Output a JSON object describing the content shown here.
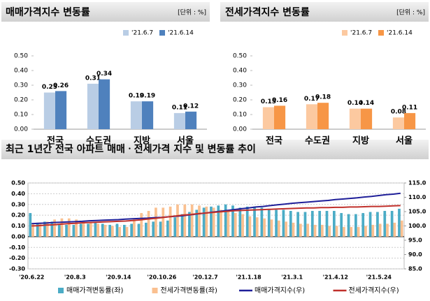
{
  "chart_data": [
    {
      "type": "bar",
      "title": "매매가격지수 변동률",
      "unit": "[단위 : %]",
      "categories": [
        "전국",
        "수도권",
        "지방",
        "서울"
      ],
      "series": [
        {
          "name": "'21.6.7",
          "color": "#b9cde5",
          "values": [
            0.25,
            0.31,
            0.19,
            0.11
          ]
        },
        {
          "name": "'21.6.14",
          "color": "#4f81bd",
          "values": [
            0.26,
            0.34,
            0.19,
            0.12
          ]
        }
      ],
      "ylim": [
        0,
        0.5
      ],
      "yticks": [
        {
          "value": 0,
          "label": "0.00"
        },
        {
          "value": 0.1,
          "label": "0.10"
        },
        {
          "value": 0.2,
          "label": "0.20"
        },
        {
          "value": 0.3,
          "label": "0.30"
        },
        {
          "value": 0.4,
          "label": "0.40"
        },
        {
          "value": 0.5,
          "label": "0.50"
        }
      ],
      "grid": false,
      "legend": "top-right"
    },
    {
      "type": "bar",
      "title": "전세가격지수 변동률",
      "unit": "[단위 : %]",
      "categories": [
        "전국",
        "수도권",
        "지방",
        "서울"
      ],
      "series": [
        {
          "name": "'21.6.7",
          "color": "#fcc9a0",
          "values": [
            0.15,
            0.17,
            0.14,
            0.08
          ]
        },
        {
          "name": "'21.6.14",
          "color": "#f79646",
          "values": [
            0.16,
            0.18,
            0.14,
            0.11
          ]
        }
      ],
      "ylim": [
        0,
        0.5
      ],
      "yticks": [
        {
          "value": 0,
          "label": "0.00"
        },
        {
          "value": 0.1,
          "label": "0.10"
        },
        {
          "value": 0.2,
          "label": "0.20"
        },
        {
          "value": 0.3,
          "label": "0.30"
        },
        {
          "value": 0.4,
          "label": "0.40"
        },
        {
          "value": 0.5,
          "label": "0.50"
        }
      ],
      "grid": false,
      "legend": "top-right"
    },
    {
      "type": "combo",
      "title": "최근 1년간 전국 아파트 매매ㆍ전세가격 지수 및 변동률 추이",
      "categories": [
        "'20.6.22",
        null,
        null,
        null,
        null,
        null,
        "'20.8.3",
        null,
        null,
        null,
        null,
        null,
        "'20.9.14",
        null,
        null,
        null,
        null,
        null,
        "'20.10.26",
        null,
        null,
        null,
        null,
        null,
        "'20.12.7",
        null,
        null,
        null,
        null,
        null,
        "'21.1.18",
        null,
        null,
        null,
        null,
        null,
        "'21.3.1",
        null,
        null,
        null,
        null,
        null,
        "'21.4.12",
        null,
        null,
        null,
        null,
        null,
        "'21.5.24",
        null,
        null,
        null
      ],
      "series": [
        {
          "name": "매매가격변동률(좌)",
          "color": "#4bacc6",
          "values": [
            0.22,
            0.13,
            0.14,
            0.14,
            0.12,
            0.11,
            0.11,
            0.12,
            0.12,
            0.13,
            0.12,
            0.11,
            0.12,
            0.11,
            0.12,
            0.12,
            0.13,
            0.14,
            0.14,
            0.15,
            0.18,
            0.21,
            0.23,
            0.25,
            0.27,
            0.28,
            0.29,
            0.3,
            0.29,
            0.27,
            0.28,
            0.28,
            0.27,
            0.26,
            0.25,
            0.25,
            0.24,
            0.23,
            0.23,
            0.24,
            0.24,
            0.24,
            0.24,
            0.22,
            0.21,
            0.21,
            0.22,
            0.23,
            0.23,
            0.24,
            0.24,
            0.26
          ]
        },
        {
          "name": "전세가격변동률(좌)",
          "color": "#fac090",
          "values": [
            0.12,
            0.13,
            0.14,
            0.16,
            0.17,
            0.17,
            0.16,
            0.14,
            0.13,
            0.12,
            0.11,
            0.1,
            0.09,
            0.09,
            0.16,
            0.22,
            0.24,
            0.27,
            0.27,
            0.28,
            0.3,
            0.3,
            0.3,
            0.29,
            0.28,
            0.27,
            0.25,
            0.23,
            0.22,
            0.21,
            0.19,
            0.18,
            0.17,
            0.16,
            0.15,
            0.14,
            0.13,
            0.12,
            0.12,
            0.11,
            0.11,
            0.1,
            0.1,
            0.09,
            0.09,
            0.09,
            0.1,
            0.11,
            0.12,
            0.12,
            0.13,
            0.15
          ]
        },
        {
          "name": "매매가격지수(우)",
          "color": "#1f1f99",
          "axis": "y2",
          "values": [
            100.8,
            100.9,
            101,
            101.2,
            101.3,
            101.4,
            101.5,
            101.6,
            101.8,
            101.9,
            102,
            102.1,
            102.2,
            102.4,
            102.5,
            102.6,
            102.7,
            102.9,
            103,
            103.2,
            103.4,
            103.6,
            103.9,
            104.2,
            104.5,
            104.8,
            105.1,
            105.4,
            105.7,
            106,
            106.3,
            106.6,
            106.8,
            107.1,
            107.4,
            107.6,
            107.9,
            108.1,
            108.3,
            108.5,
            108.7,
            108.9,
            109.2,
            109.4,
            109.6,
            109.8,
            110.1,
            110.3,
            110.6,
            110.9,
            111.1,
            111.4
          ]
        },
        {
          "name": "전세가격지수(우)",
          "color": "#c0302b",
          "axis": "y2",
          "values": [
            100,
            100.1,
            100.3,
            100.4,
            100.6,
            100.8,
            100.9,
            101.1,
            101.2,
            101.3,
            101.4,
            101.5,
            101.6,
            101.7,
            101.9,
            102.1,
            102.4,
            102.6,
            102.9,
            103.2,
            103.5,
            103.8,
            104,
            104.3,
            104.5,
            104.7,
            104.9,
            105.1,
            105.3,
            105.4,
            105.5,
            105.6,
            105.7,
            105.8,
            105.9,
            106,
            106.1,
            106.2,
            106.3,
            106.3,
            106.4,
            106.4,
            106.5,
            106.5,
            106.6,
            106.6,
            106.7,
            106.8,
            106.8,
            106.9,
            107,
            107.1
          ]
        }
      ],
      "ylim": [
        -0.3,
        0.5
      ],
      "yticks": [
        {
          "value": -0.3,
          "label": "-0.30"
        },
        {
          "value": -0.2,
          "label": "-0.20"
        },
        {
          "value": -0.1,
          "label": "-0.10"
        },
        {
          "value": 0,
          "label": "0.00"
        },
        {
          "value": 0.1,
          "label": "0.10"
        },
        {
          "value": 0.2,
          "label": "0.20"
        },
        {
          "value": 0.3,
          "label": "0.30"
        },
        {
          "value": 0.4,
          "label": "0.40"
        },
        {
          "value": 0.5,
          "label": "0.50"
        }
      ],
      "y2lim": [
        85,
        115
      ],
      "y2ticks": [
        {
          "value": 85,
          "label": "85.0"
        },
        {
          "value": 90,
          "label": "90.0"
        },
        {
          "value": 95,
          "label": "95.0"
        },
        {
          "value": 100,
          "label": "100.0"
        },
        {
          "value": 105,
          "label": "105.0"
        },
        {
          "value": 110,
          "label": "110.0"
        },
        {
          "value": 115,
          "label": "115.0"
        }
      ],
      "grid": true,
      "legend": "bottom"
    }
  ]
}
